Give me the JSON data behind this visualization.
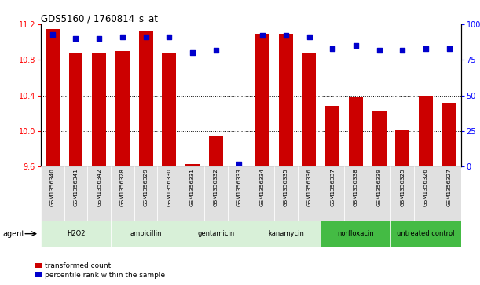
{
  "title": "GDS5160 / 1760814_s_at",
  "samples": [
    "GSM1356340",
    "GSM1356341",
    "GSM1356342",
    "GSM1356328",
    "GSM1356329",
    "GSM1356330",
    "GSM1356331",
    "GSM1356332",
    "GSM1356333",
    "GSM1356334",
    "GSM1356335",
    "GSM1356336",
    "GSM1356337",
    "GSM1356338",
    "GSM1356339",
    "GSM1356325",
    "GSM1356326",
    "GSM1356327"
  ],
  "transformed_count": [
    11.15,
    10.88,
    10.87,
    10.9,
    11.13,
    10.88,
    9.63,
    9.95,
    9.6,
    11.09,
    11.09,
    10.88,
    10.28,
    10.38,
    10.22,
    10.02,
    10.4,
    10.32
  ],
  "percentile_rank": [
    93,
    90,
    90,
    91,
    91,
    91,
    80,
    82,
    2,
    92,
    92,
    91,
    83,
    85,
    82,
    82,
    83,
    83
  ],
  "groups": [
    {
      "label": "H2O2",
      "start": 0,
      "end": 3,
      "light": true
    },
    {
      "label": "ampicillin",
      "start": 3,
      "end": 6,
      "light": true
    },
    {
      "label": "gentamicin",
      "start": 6,
      "end": 9,
      "light": true
    },
    {
      "label": "kanamycin",
      "start": 9,
      "end": 12,
      "light": true
    },
    {
      "label": "norfloxacin",
      "start": 12,
      "end": 15,
      "light": false
    },
    {
      "label": "untreated control",
      "start": 15,
      "end": 18,
      "light": false
    }
  ],
  "ylim_left": [
    9.6,
    11.2
  ],
  "ylim_right": [
    0,
    100
  ],
  "yticks_left": [
    9.6,
    10.0,
    10.4,
    10.8,
    11.2
  ],
  "yticks_right": [
    0,
    25,
    50,
    75,
    100
  ],
  "ytick_labels_right": [
    "0",
    "25",
    "50",
    "75",
    "100%"
  ],
  "dotted_gridlines": [
    10.0,
    10.4,
    10.8
  ],
  "bar_color": "#cc0000",
  "dot_color": "#0000cc",
  "light_group_color": "#d8f0d8",
  "dark_group_color": "#44bb44",
  "legend_transformed": "transformed count",
  "legend_percentile": "percentile rank within the sample",
  "agent_label": "agent"
}
